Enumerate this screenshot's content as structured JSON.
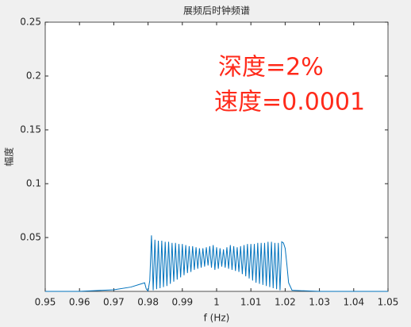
{
  "chart_data": {
    "type": "line",
    "title": "展频后时钟频谱",
    "x_label": "f (Hz)",
    "y_label": "幅度",
    "annotations": [
      "深度=2%",
      "速度=0.0001"
    ],
    "xlim": [
      0.95,
      1.05
    ],
    "ylim": [
      0,
      0.25
    ],
    "xticks": [
      0.95,
      0.96,
      0.97,
      0.98,
      0.99,
      1,
      1.01,
      1.02,
      1.03,
      1.04,
      1.05
    ],
    "yticks": [
      0.05,
      0.1,
      0.15,
      0.2,
      0.25
    ],
    "grid": false,
    "series": [
      {
        "color": "#0072bd",
        "x": [
          0.95,
          0.96,
          0.97,
          0.975,
          0.978,
          0.979,
          0.9795,
          0.98,
          0.9805,
          0.981,
          0.9815,
          0.982,
          0.9825,
          0.983,
          0.9835,
          0.984,
          0.9845,
          0.985,
          0.9855,
          0.986,
          0.9865,
          0.987,
          0.9875,
          0.988,
          0.9885,
          0.989,
          0.9895,
          0.99,
          0.9905,
          0.991,
          0.9915,
          0.992,
          0.9925,
          0.993,
          0.9935,
          0.994,
          0.9945,
          0.995,
          0.9955,
          0.996,
          0.9965,
          0.997,
          0.9975,
          0.998,
          0.9985,
          0.999,
          0.9995,
          1,
          1.0005,
          1.001,
          1.0015,
          1.002,
          1.0025,
          1.003,
          1.0035,
          1.004,
          1.0045,
          1.005,
          1.0055,
          1.006,
          1.0065,
          1.007,
          1.0075,
          1.008,
          1.0085,
          1.009,
          1.0095,
          1.01,
          1.0105,
          1.011,
          1.0115,
          1.012,
          1.0125,
          1.013,
          1.0135,
          1.014,
          1.0145,
          1.015,
          1.0155,
          1.016,
          1.0165,
          1.017,
          1.0175,
          1.018,
          1.0185,
          1.019,
          1.0195,
          1.02,
          1.0205,
          1.021,
          1.022,
          1.03,
          1.05
        ],
        "values": [
          0,
          0,
          0.0015,
          0.004,
          0.007,
          0.008,
          0.002,
          0.0005,
          0.01,
          0.052,
          0.001,
          0.048,
          0.002,
          0.047,
          0.003,
          0.047,
          0.004,
          0.046,
          0.005,
          0.046,
          0.007,
          0.045,
          0.009,
          0.045,
          0.011,
          0.044,
          0.013,
          0.044,
          0.015,
          0.043,
          0.017,
          0.042,
          0.018,
          0.042,
          0.02,
          0.041,
          0.021,
          0.04,
          0.022,
          0.04,
          0.023,
          0.041,
          0.024,
          0.042,
          0.022,
          0.043,
          0.02,
          0.041,
          0.021,
          0.04,
          0.023,
          0.039,
          0.022,
          0.041,
          0.021,
          0.043,
          0.02,
          0.042,
          0.019,
          0.041,
          0.018,
          0.042,
          0.016,
          0.043,
          0.014,
          0.044,
          0.012,
          0.044,
          0.01,
          0.044,
          0.008,
          0.045,
          0.007,
          0.045,
          0.006,
          0.045,
          0.005,
          0.046,
          0.004,
          0.046,
          0.003,
          0.045,
          0.002,
          0.045,
          0.001,
          0.046,
          0.045,
          0.04,
          0.025,
          0.008,
          0.001,
          0,
          0
        ]
      }
    ]
  }
}
